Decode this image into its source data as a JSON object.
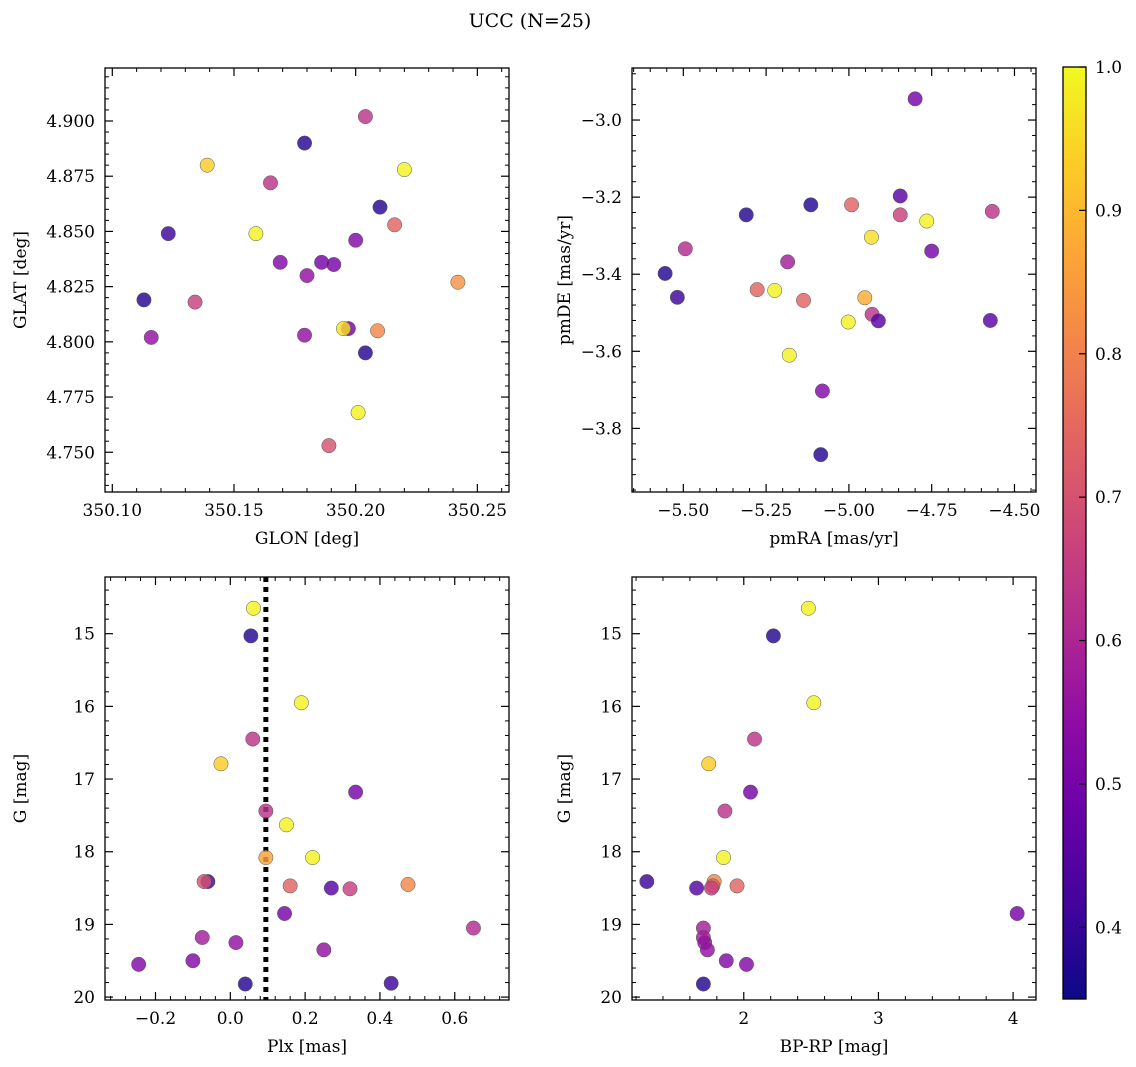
{
  "figure": {
    "title": "UCC (N=25)"
  },
  "colorbar": {
    "min": 0.35,
    "max": 1.0,
    "ticks": [
      0.4,
      0.5,
      0.6,
      0.7,
      0.8,
      0.9,
      1.0
    ],
    "tick_labels": [
      "0.4",
      "0.5",
      "0.6",
      "0.7",
      "0.8",
      "0.9",
      "1.0"
    ],
    "colormap": "plasma"
  },
  "chart_data": [
    {
      "type": "scatter",
      "xlabel": "GLON [deg]",
      "ylabel": "GLAT [deg]",
      "xlim": [
        350.097,
        350.263
      ],
      "ylim": [
        4.732,
        4.924
      ],
      "xticks": [
        350.1,
        350.15,
        350.2,
        350.25
      ],
      "xtick_labels": [
        "350.10",
        "350.15",
        "350.20",
        "350.25"
      ],
      "yticks": [
        4.75,
        4.775,
        4.8,
        4.825,
        4.85,
        4.875,
        4.9
      ],
      "ytick_labels": [
        "4.750",
        "4.775",
        "4.800",
        "4.825",
        "4.850",
        "4.875",
        "4.900"
      ],
      "yinverted": false,
      "points": [
        {
          "x": 350.204,
          "y": 4.902,
          "c": 0.63
        },
        {
          "x": 350.179,
          "y": 4.89,
          "c": 0.38
        },
        {
          "x": 350.139,
          "y": 4.88,
          "c": 0.93
        },
        {
          "x": 350.22,
          "y": 4.878,
          "c": 0.99
        },
        {
          "x": 350.165,
          "y": 4.872,
          "c": 0.63
        },
        {
          "x": 350.21,
          "y": 4.861,
          "c": 0.38
        },
        {
          "x": 350.216,
          "y": 4.853,
          "c": 0.74
        },
        {
          "x": 350.123,
          "y": 4.849,
          "c": 0.41
        },
        {
          "x": 350.159,
          "y": 4.849,
          "c": 0.99
        },
        {
          "x": 350.2,
          "y": 4.846,
          "c": 0.52
        },
        {
          "x": 350.169,
          "y": 4.836,
          "c": 0.52
        },
        {
          "x": 350.186,
          "y": 4.836,
          "c": 0.5
        },
        {
          "x": 350.191,
          "y": 4.835,
          "c": 0.5
        },
        {
          "x": 350.18,
          "y": 4.83,
          "c": 0.55
        },
        {
          "x": 350.242,
          "y": 4.827,
          "c": 0.83
        },
        {
          "x": 350.113,
          "y": 4.819,
          "c": 0.38
        },
        {
          "x": 350.134,
          "y": 4.818,
          "c": 0.66
        },
        {
          "x": 350.197,
          "y": 4.806,
          "c": 0.5
        },
        {
          "x": 350.195,
          "y": 4.806,
          "c": 0.96
        },
        {
          "x": 350.209,
          "y": 4.805,
          "c": 0.81
        },
        {
          "x": 350.179,
          "y": 4.803,
          "c": 0.55
        },
        {
          "x": 350.116,
          "y": 4.802,
          "c": 0.55
        },
        {
          "x": 350.204,
          "y": 4.795,
          "c": 0.38
        },
        {
          "x": 350.201,
          "y": 4.768,
          "c": 0.99
        },
        {
          "x": 350.189,
          "y": 4.753,
          "c": 0.7
        }
      ]
    },
    {
      "type": "scatter",
      "xlabel": "pmRA [mas/yr]",
      "ylabel": "pmDE [mas/yr]",
      "xlim": [
        -5.655,
        -4.435
      ],
      "ylim": [
        -3.965,
        -2.865
      ],
      "xticks": [
        -5.5,
        -5.25,
        -5.0,
        -4.75,
        -4.5
      ],
      "xtick_labels": [
        "−5.50",
        "−5.25",
        "−5.00",
        "−4.75",
        "−4.50"
      ],
      "yticks": [
        -3.8,
        -3.6,
        -3.4,
        -3.2,
        -3.0
      ],
      "ytick_labels": [
        "−3.8",
        "−3.6",
        "−3.4",
        "−3.2",
        "−3.0"
      ],
      "yinverted": false,
      "points": [
        {
          "x": -4.8,
          "y": -2.945,
          "c": 0.5
        },
        {
          "x": -4.845,
          "y": -3.197,
          "c": 0.45
        },
        {
          "x": -5.115,
          "y": -3.22,
          "c": 0.38
        },
        {
          "x": -4.992,
          "y": -3.22,
          "c": 0.74
        },
        {
          "x": -5.31,
          "y": -3.246,
          "c": 0.38
        },
        {
          "x": -4.845,
          "y": -3.246,
          "c": 0.66
        },
        {
          "x": -4.567,
          "y": -3.237,
          "c": 0.63
        },
        {
          "x": -4.765,
          "y": -3.262,
          "c": 0.99
        },
        {
          "x": -4.932,
          "y": -3.304,
          "c": 0.96
        },
        {
          "x": -5.494,
          "y": -3.334,
          "c": 0.61
        },
        {
          "x": -4.75,
          "y": -3.34,
          "c": 0.5
        },
        {
          "x": -5.185,
          "y": -3.368,
          "c": 0.58
        },
        {
          "x": -5.555,
          "y": -3.398,
          "c": 0.38
        },
        {
          "x": -5.277,
          "y": -3.44,
          "c": 0.74
        },
        {
          "x": -5.224,
          "y": -3.442,
          "c": 0.99
        },
        {
          "x": -5.518,
          "y": -3.46,
          "c": 0.41
        },
        {
          "x": -4.952,
          "y": -3.461,
          "c": 0.88
        },
        {
          "x": -5.137,
          "y": -3.468,
          "c": 0.74
        },
        {
          "x": -4.93,
          "y": -3.504,
          "c": 0.63
        },
        {
          "x": -4.911,
          "y": -3.521,
          "c": 0.45
        },
        {
          "x": -5.002,
          "y": -3.524,
          "c": 0.99
        },
        {
          "x": -4.573,
          "y": -3.52,
          "c": 0.45
        },
        {
          "x": -5.18,
          "y": -3.61,
          "c": 0.99
        },
        {
          "x": -5.08,
          "y": -3.703,
          "c": 0.52
        },
        {
          "x": -5.085,
          "y": -3.868,
          "c": 0.38
        }
      ]
    },
    {
      "type": "scatter",
      "xlabel": "Plx [mas]",
      "ylabel": "G [mag]",
      "xlim": [
        -0.335,
        0.745
      ],
      "ylim": [
        20.04,
        14.22
      ],
      "xticks": [
        -0.2,
        0.0,
        0.2,
        0.4,
        0.6
      ],
      "xtick_labels": [
        "−0.2",
        "0.0",
        "0.2",
        "0.4",
        "0.6"
      ],
      "yticks": [
        15,
        16,
        17,
        18,
        19,
        20
      ],
      "ytick_labels": [
        "15",
        "16",
        "17",
        "18",
        "19",
        "20"
      ],
      "yinverted": true,
      "vline": {
        "x": 0.095,
        "style": "dotted"
      },
      "points": [
        {
          "x": 0.062,
          "y": 14.65,
          "c": 0.99
        },
        {
          "x": 0.055,
          "y": 15.03,
          "c": 0.38
        },
        {
          "x": 0.19,
          "y": 15.95,
          "c": 0.99
        },
        {
          "x": 0.06,
          "y": 16.45,
          "c": 0.63
        },
        {
          "x": -0.025,
          "y": 16.79,
          "c": 0.93
        },
        {
          "x": 0.335,
          "y": 17.18,
          "c": 0.5
        },
        {
          "x": 0.095,
          "y": 17.44,
          "c": 0.63
        },
        {
          "x": 0.15,
          "y": 17.63,
          "c": 0.99
        },
        {
          "x": 0.095,
          "y": 18.08,
          "c": 0.86
        },
        {
          "x": 0.22,
          "y": 18.08,
          "c": 0.99
        },
        {
          "x": -0.06,
          "y": 18.41,
          "c": 0.41
        },
        {
          "x": -0.07,
          "y": 18.41,
          "c": 0.7
        },
        {
          "x": 0.16,
          "y": 18.47,
          "c": 0.74
        },
        {
          "x": 0.475,
          "y": 18.45,
          "c": 0.81
        },
        {
          "x": 0.27,
          "y": 18.5,
          "c": 0.45
        },
        {
          "x": 0.32,
          "y": 18.51,
          "c": 0.66
        },
        {
          "x": 0.145,
          "y": 18.85,
          "c": 0.5
        },
        {
          "x": 0.65,
          "y": 19.05,
          "c": 0.61
        },
        {
          "x": -0.075,
          "y": 19.18,
          "c": 0.58
        },
        {
          "x": 0.015,
          "y": 19.25,
          "c": 0.55
        },
        {
          "x": 0.25,
          "y": 19.35,
          "c": 0.55
        },
        {
          "x": -0.1,
          "y": 19.5,
          "c": 0.52
        },
        {
          "x": -0.245,
          "y": 19.55,
          "c": 0.52
        },
        {
          "x": 0.04,
          "y": 19.82,
          "c": 0.38
        },
        {
          "x": 0.43,
          "y": 19.81,
          "c": 0.41
        }
      ]
    },
    {
      "type": "scatter",
      "xlabel": "BP-RP [mag]",
      "ylabel": "G [mag]",
      "xlim": [
        1.17,
        4.17
      ],
      "ylim": [
        20.04,
        14.22
      ],
      "xticks": [
        2,
        3,
        4
      ],
      "xtick_labels": [
        "2",
        "3",
        "4"
      ],
      "yticks": [
        15,
        16,
        17,
        18,
        19,
        20
      ],
      "ytick_labels": [
        "15",
        "16",
        "17",
        "18",
        "19",
        "20"
      ],
      "yinverted": true,
      "points": [
        {
          "x": 2.48,
          "y": 14.65,
          "c": 0.99
        },
        {
          "x": 2.22,
          "y": 15.03,
          "c": 0.38
        },
        {
          "x": 2.52,
          "y": 15.95,
          "c": 0.99
        },
        {
          "x": 2.08,
          "y": 16.45,
          "c": 0.63
        },
        {
          "x": 1.74,
          "y": 16.79,
          "c": 0.93
        },
        {
          "x": 2.05,
          "y": 17.18,
          "c": 0.5
        },
        {
          "x": 1.86,
          "y": 17.44,
          "c": 0.63
        },
        {
          "x": 1.85,
          "y": 18.08,
          "c": 0.99
        },
        {
          "x": 1.28,
          "y": 18.41,
          "c": 0.41
        },
        {
          "x": 1.78,
          "y": 18.41,
          "c": 0.81
        },
        {
          "x": 1.77,
          "y": 18.47,
          "c": 0.74
        },
        {
          "x": 1.95,
          "y": 18.47,
          "c": 0.74
        },
        {
          "x": 1.65,
          "y": 18.5,
          "c": 0.45
        },
        {
          "x": 1.76,
          "y": 18.5,
          "c": 0.66
        },
        {
          "x": 4.03,
          "y": 18.85,
          "c": 0.5
        },
        {
          "x": 1.7,
          "y": 19.05,
          "c": 0.58
        },
        {
          "x": 1.7,
          "y": 19.18,
          "c": 0.58
        },
        {
          "x": 1.71,
          "y": 19.25,
          "c": 0.55
        },
        {
          "x": 1.73,
          "y": 19.35,
          "c": 0.55
        },
        {
          "x": 1.87,
          "y": 19.5,
          "c": 0.52
        },
        {
          "x": 2.02,
          "y": 19.55,
          "c": 0.52
        },
        {
          "x": 1.7,
          "y": 19.82,
          "c": 0.38
        }
      ]
    }
  ]
}
